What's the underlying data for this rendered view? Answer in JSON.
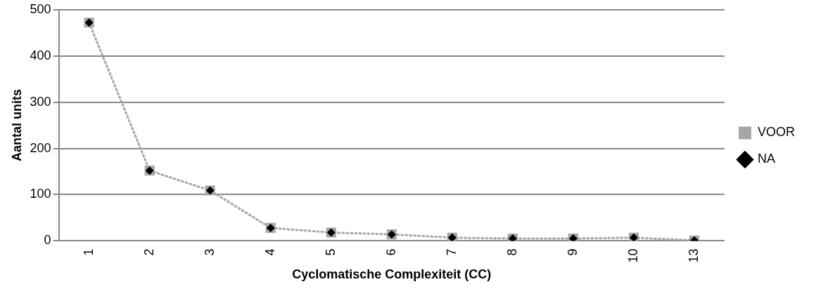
{
  "chart_data": {
    "type": "line",
    "xlabel": "Cyclomatische Complexiteit (CC)",
    "ylabel": "Aantal units",
    "categories": [
      "1",
      "2",
      "3",
      "4",
      "5",
      "6",
      "7",
      "8",
      "9",
      "10",
      "13"
    ],
    "series": [
      {
        "name": "VOOR",
        "color": "#a6a6a6",
        "marker": "square",
        "line_style": "dotted",
        "values": [
          472,
          152,
          109,
          28,
          18,
          14,
          7,
          5,
          5,
          7,
          1
        ]
      },
      {
        "name": "NA",
        "type": "scatter",
        "color": "#000000",
        "marker": "diamond",
        "values": [
          472,
          152,
          109,
          28,
          18,
          14,
          7,
          5,
          5,
          7,
          1
        ]
      }
    ],
    "ylim": [
      0,
      500
    ],
    "yticks": [
      0,
      100,
      200,
      300,
      400,
      500
    ],
    "grid": "y",
    "legend": "right"
  }
}
